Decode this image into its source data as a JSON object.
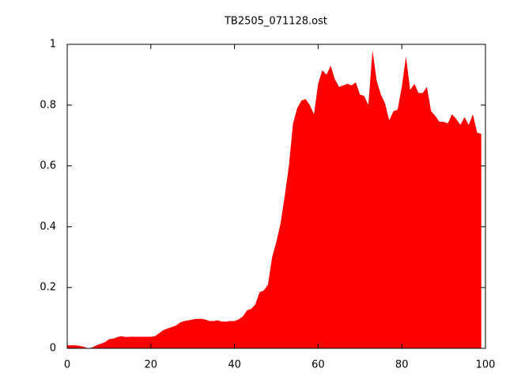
{
  "chart_data": {
    "type": "area",
    "title": "TB2505_071128.ost",
    "color": "#ff0000",
    "x": [
      0,
      1,
      2,
      3,
      4,
      5,
      6,
      7,
      8,
      9,
      10,
      11,
      12,
      13,
      14,
      15,
      16,
      17,
      18,
      19,
      20,
      21,
      22,
      23,
      24,
      25,
      26,
      27,
      28,
      29,
      30,
      31,
      32,
      33,
      34,
      35,
      36,
      37,
      38,
      39,
      40,
      41,
      42,
      43,
      44,
      45,
      46,
      47,
      48,
      49,
      50,
      51,
      52,
      53,
      54,
      55,
      56,
      57,
      58,
      59,
      60,
      61,
      62,
      63,
      64,
      65,
      66,
      67,
      68,
      69,
      70,
      71,
      72,
      73,
      74,
      75,
      76,
      77,
      78,
      79,
      80,
      81,
      82,
      83,
      84,
      85,
      86,
      87,
      88,
      89,
      90,
      91,
      92,
      93,
      94,
      95,
      96,
      97,
      98,
      99
    ],
    "values": [
      0.01,
      0.01,
      0.01,
      0.008,
      0.005,
      0,
      0.003,
      0.01,
      0.015,
      0.02,
      0.03,
      0.032,
      0.037,
      0.04,
      0.037,
      0.038,
      0.038,
      0.038,
      0.038,
      0.038,
      0.038,
      0.04,
      0.05,
      0.06,
      0.065,
      0.07,
      0.075,
      0.085,
      0.09,
      0.092,
      0.095,
      0.097,
      0.097,
      0.095,
      0.09,
      0.09,
      0.092,
      0.088,
      0.088,
      0.09,
      0.09,
      0.095,
      0.105,
      0.125,
      0.13,
      0.145,
      0.185,
      0.19,
      0.21,
      0.3,
      0.35,
      0.41,
      0.5,
      0.6,
      0.74,
      0.79,
      0.815,
      0.82,
      0.8,
      0.77,
      0.87,
      0.915,
      0.9,
      0.93,
      0.885,
      0.86,
      0.865,
      0.87,
      0.865,
      0.875,
      0.835,
      0.83,
      0.8,
      0.98,
      0.88,
      0.835,
      0.805,
      0.75,
      0.78,
      0.785,
      0.86,
      0.96,
      0.85,
      0.87,
      0.84,
      0.84,
      0.86,
      0.78,
      0.765,
      0.745,
      0.745,
      0.74,
      0.77,
      0.755,
      0.735,
      0.76,
      0.735,
      0.77,
      0.71,
      0.705
    ],
    "xlim": [
      0,
      100
    ],
    "xticks": [
      0,
      20,
      40,
      60,
      80,
      100
    ],
    "ylim": [
      0,
      1
    ],
    "yticks": [
      0,
      0.2,
      0.4,
      0.6,
      0.8,
      1
    ],
    "grid": false
  }
}
